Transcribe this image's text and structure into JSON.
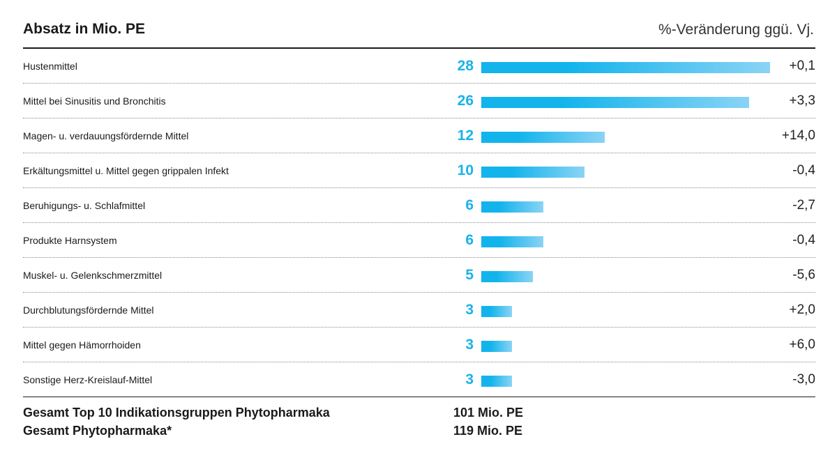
{
  "chart_data": {
    "type": "bar",
    "title": "Absatz in Mio. PE",
    "change_label": "%-Veränderung ggü. Vj.",
    "categories": [
      "Hustenmittel",
      "Mittel bei Sinusitis und Bronchitis",
      "Magen- u. verdauungsfördernde Mittel",
      "Erkältungsmittel u. Mittel gegen grippalen Infekt",
      "Beruhigungs- u. Schlafmittel",
      "Produkte Harnsystem",
      "Muskel- u. Gelenkschmerzmittel",
      "Durchblutungsfördernde Mittel",
      "Mittel gegen Hämorrhoiden",
      "Sonstige Herz-Kreislauf-Mittel"
    ],
    "values": [
      28,
      26,
      12,
      10,
      6,
      6,
      5,
      3,
      3,
      3
    ],
    "changes": [
      "+0,1",
      "+3,3",
      "+14,0",
      "-0,4",
      "-2,7",
      "-0,4",
      "-5,6",
      "+2,0",
      "+6,0",
      "-3,0"
    ],
    "xlim": [
      0,
      28
    ],
    "bar_color": "#13b4ec",
    "value_color": "#1ab2ea"
  },
  "totals": [
    {
      "label": "Gesamt Top 10 Indikationsgruppen Phytopharmaka",
      "value": "101 Mio. PE"
    },
    {
      "label": "Gesamt Phytopharmaka*",
      "value": "119 Mio. PE"
    }
  ]
}
